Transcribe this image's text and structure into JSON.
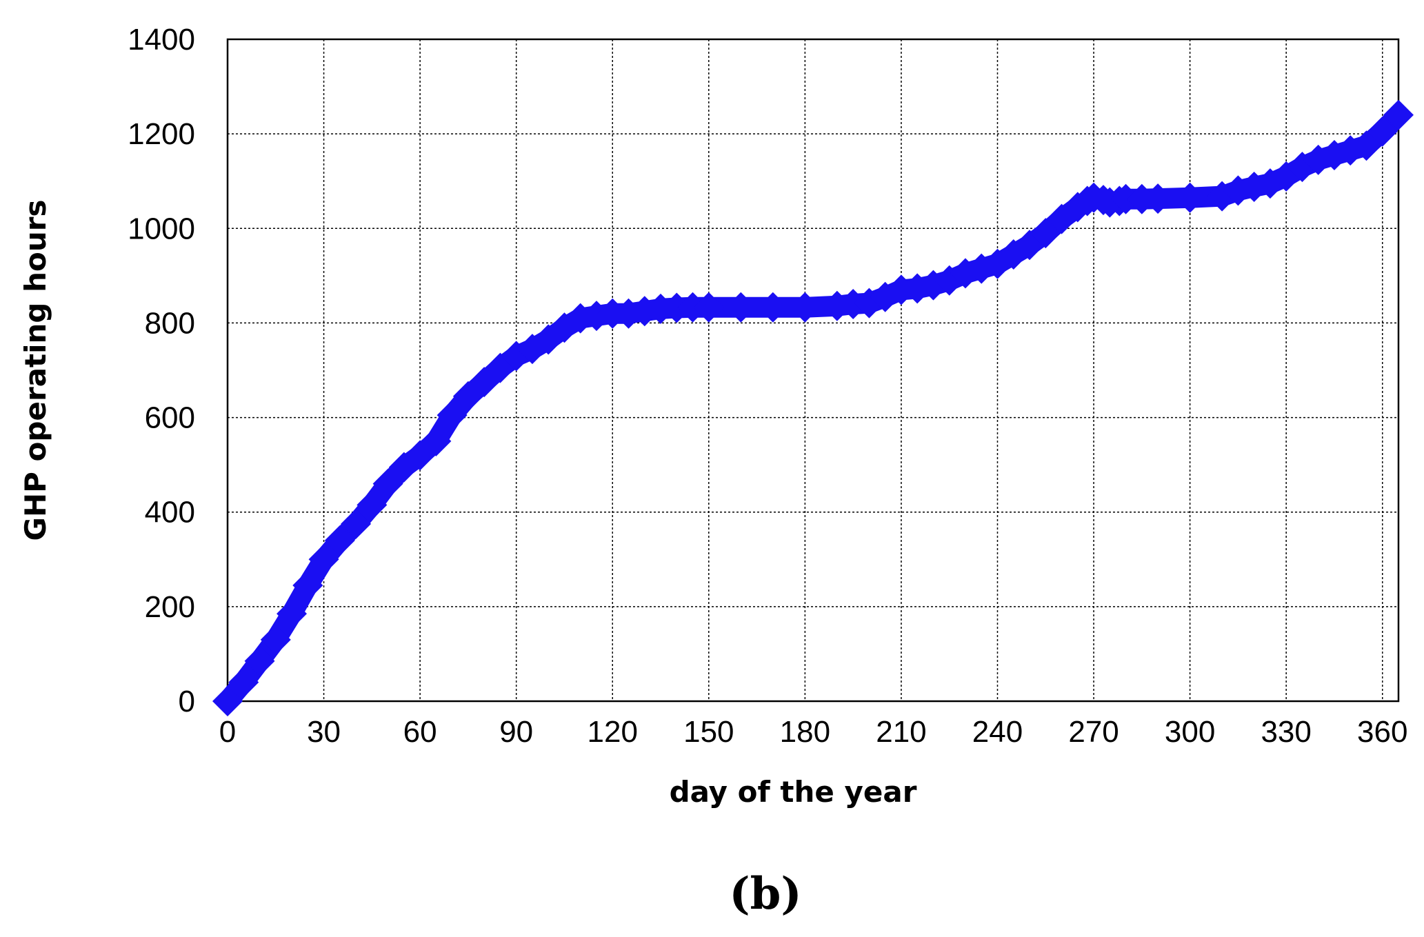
{
  "panel_label": "(b)",
  "chart_data": {
    "type": "line",
    "xlabel": "day of the year",
    "ylabel": "GHP operating hours",
    "xlim": [
      0,
      365
    ],
    "ylim": [
      0,
      1400
    ],
    "xticks": [
      0,
      30,
      60,
      90,
      120,
      150,
      180,
      210,
      240,
      270,
      300,
      330,
      360
    ],
    "yticks": [
      0,
      200,
      400,
      600,
      800,
      1000,
      1200,
      1400
    ],
    "grid": true,
    "marker": "diamond",
    "series_color": "#1a0ff2",
    "series": [
      {
        "x": [
          0,
          5,
          10,
          15,
          20,
          25,
          30,
          35,
          40,
          45,
          50,
          55,
          60,
          65,
          70,
          75,
          80,
          85,
          90,
          95,
          100,
          105,
          110,
          115,
          120,
          125,
          130,
          135,
          140,
          145,
          150,
          160,
          170,
          180,
          190,
          195,
          200,
          205,
          210,
          215,
          220,
          225,
          230,
          235,
          240,
          245,
          250,
          255,
          260,
          265,
          268,
          270,
          273,
          275,
          278,
          280,
          285,
          290,
          300,
          310,
          315,
          320,
          325,
          330,
          335,
          340,
          345,
          350,
          355,
          360,
          365
        ],
        "y": [
          0,
          40,
          85,
          130,
          185,
          245,
          300,
          340,
          375,
          415,
          460,
          495,
          520,
          550,
          605,
          645,
          675,
          705,
          730,
          745,
          765,
          790,
          810,
          815,
          820,
          820,
          825,
          830,
          832,
          833,
          833,
          833,
          833,
          833,
          836,
          840,
          842,
          855,
          870,
          873,
          880,
          890,
          905,
          915,
          925,
          945,
          965,
          990,
          1020,
          1045,
          1058,
          1065,
          1060,
          1055,
          1058,
          1062,
          1062,
          1063,
          1065,
          1068,
          1080,
          1088,
          1095,
          1110,
          1130,
          1145,
          1155,
          1165,
          1175,
          1205,
          1240
        ]
      }
    ]
  }
}
